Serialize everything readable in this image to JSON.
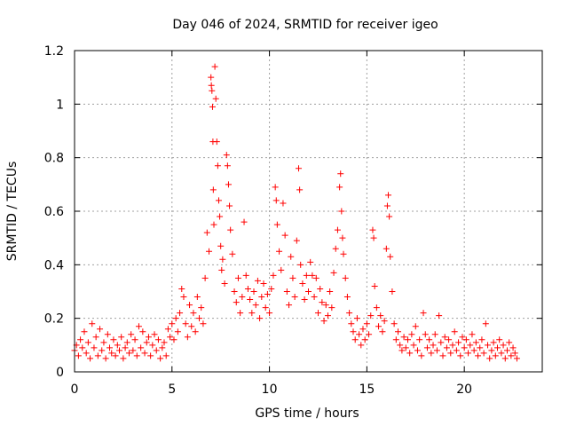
{
  "chart_data": {
    "type": "scatter",
    "title": "Day 046 of 2024, SRMTID for receiver igeo",
    "xlabel": "GPS time / hours",
    "ylabel": "SRMTID / TECUs",
    "xlim": [
      0,
      24
    ],
    "ylim": [
      0,
      1.2
    ],
    "x_ticks": [
      0,
      5,
      10,
      15,
      20
    ],
    "x_tick_labels": [
      "0",
      "5",
      "10",
      "15",
      "20"
    ],
    "y_ticks": [
      0,
      0.2,
      0.4,
      0.6,
      0.8,
      1.0,
      1.2
    ],
    "y_tick_labels": [
      "0",
      "0.2",
      "0.4",
      "0.6",
      "0.8",
      "1",
      "1.2"
    ],
    "grid": true,
    "marker": "plus",
    "marker_color": "#ff0000",
    "series": [
      {
        "name": "SRMTID",
        "points": [
          [
            0.0,
            0.08
          ],
          [
            0.1,
            0.1
          ],
          [
            0.2,
            0.06
          ],
          [
            0.3,
            0.12
          ],
          [
            0.4,
            0.09
          ],
          [
            0.5,
            0.15
          ],
          [
            0.6,
            0.07
          ],
          [
            0.7,
            0.11
          ],
          [
            0.8,
            0.05
          ],
          [
            0.9,
            0.18
          ],
          [
            1.0,
            0.09
          ],
          [
            1.1,
            0.13
          ],
          [
            1.2,
            0.06
          ],
          [
            1.3,
            0.16
          ],
          [
            1.4,
            0.08
          ],
          [
            1.5,
            0.11
          ],
          [
            1.6,
            0.05
          ],
          [
            1.7,
            0.14
          ],
          [
            1.8,
            0.09
          ],
          [
            1.9,
            0.07
          ],
          [
            2.0,
            0.12
          ],
          [
            2.1,
            0.06
          ],
          [
            2.2,
            0.1
          ],
          [
            2.3,
            0.08
          ],
          [
            2.4,
            0.13
          ],
          [
            2.5,
            0.05
          ],
          [
            2.6,
            0.09
          ],
          [
            2.7,
            0.11
          ],
          [
            2.8,
            0.07
          ],
          [
            2.9,
            0.14
          ],
          [
            3.0,
            0.08
          ],
          [
            3.1,
            0.12
          ],
          [
            3.2,
            0.06
          ],
          [
            3.3,
            0.17
          ],
          [
            3.4,
            0.09
          ],
          [
            3.5,
            0.15
          ],
          [
            3.6,
            0.07
          ],
          [
            3.7,
            0.11
          ],
          [
            3.8,
            0.13
          ],
          [
            3.9,
            0.06
          ],
          [
            4.0,
            0.1
          ],
          [
            4.1,
            0.14
          ],
          [
            4.2,
            0.08
          ],
          [
            4.3,
            0.12
          ],
          [
            4.4,
            0.05
          ],
          [
            4.5,
            0.09
          ],
          [
            4.6,
            0.11
          ],
          [
            4.7,
            0.06
          ],
          [
            4.8,
            0.16
          ],
          [
            4.9,
            0.13
          ],
          [
            5.0,
            0.18
          ],
          [
            5.1,
            0.12
          ],
          [
            5.2,
            0.2
          ],
          [
            5.3,
            0.15
          ],
          [
            5.4,
            0.22
          ],
          [
            5.5,
            0.31
          ],
          [
            5.6,
            0.28
          ],
          [
            5.7,
            0.18
          ],
          [
            5.8,
            0.13
          ],
          [
            5.9,
            0.25
          ],
          [
            6.0,
            0.17
          ],
          [
            6.1,
            0.22
          ],
          [
            6.2,
            0.15
          ],
          [
            6.3,
            0.28
          ],
          [
            6.4,
            0.2
          ],
          [
            6.5,
            0.24
          ],
          [
            6.6,
            0.18
          ],
          [
            6.7,
            0.35
          ],
          [
            6.8,
            0.52
          ],
          [
            6.9,
            0.45
          ],
          [
            7.0,
            1.1
          ],
          [
            7.02,
            1.07
          ],
          [
            7.05,
            1.05
          ],
          [
            7.08,
            0.99
          ],
          [
            7.1,
            0.86
          ],
          [
            7.12,
            0.68
          ],
          [
            7.15,
            0.55
          ],
          [
            7.2,
            1.14
          ],
          [
            7.25,
            1.02
          ],
          [
            7.3,
            0.86
          ],
          [
            7.35,
            0.77
          ],
          [
            7.4,
            0.64
          ],
          [
            7.45,
            0.58
          ],
          [
            7.5,
            0.47
          ],
          [
            7.55,
            0.38
          ],
          [
            7.6,
            0.42
          ],
          [
            7.7,
            0.33
          ],
          [
            7.8,
            0.81
          ],
          [
            7.85,
            0.77
          ],
          [
            7.9,
            0.7
          ],
          [
            7.95,
            0.62
          ],
          [
            8.0,
            0.53
          ],
          [
            8.1,
            0.44
          ],
          [
            8.2,
            0.3
          ],
          [
            8.3,
            0.26
          ],
          [
            8.4,
            0.35
          ],
          [
            8.5,
            0.22
          ],
          [
            8.6,
            0.28
          ],
          [
            8.7,
            0.56
          ],
          [
            8.8,
            0.36
          ],
          [
            8.9,
            0.31
          ],
          [
            9.0,
            0.27
          ],
          [
            9.1,
            0.22
          ],
          [
            9.2,
            0.3
          ],
          [
            9.3,
            0.25
          ],
          [
            9.4,
            0.34
          ],
          [
            9.5,
            0.2
          ],
          [
            9.6,
            0.28
          ],
          [
            9.7,
            0.33
          ],
          [
            9.8,
            0.24
          ],
          [
            9.9,
            0.29
          ],
          [
            10.0,
            0.22
          ],
          [
            10.1,
            0.31
          ],
          [
            10.2,
            0.36
          ],
          [
            10.3,
            0.69
          ],
          [
            10.35,
            0.64
          ],
          [
            10.4,
            0.55
          ],
          [
            10.5,
            0.45
          ],
          [
            10.6,
            0.38
          ],
          [
            10.7,
            0.63
          ],
          [
            10.8,
            0.51
          ],
          [
            10.9,
            0.3
          ],
          [
            11.0,
            0.25
          ],
          [
            11.1,
            0.43
          ],
          [
            11.2,
            0.35
          ],
          [
            11.3,
            0.28
          ],
          [
            11.4,
            0.49
          ],
          [
            11.5,
            0.76
          ],
          [
            11.55,
            0.68
          ],
          [
            11.6,
            0.4
          ],
          [
            11.7,
            0.33
          ],
          [
            11.8,
            0.27
          ],
          [
            11.9,
            0.36
          ],
          [
            12.0,
            0.3
          ],
          [
            12.1,
            0.41
          ],
          [
            12.2,
            0.36
          ],
          [
            12.3,
            0.28
          ],
          [
            12.4,
            0.35
          ],
          [
            12.5,
            0.22
          ],
          [
            12.6,
            0.31
          ],
          [
            12.7,
            0.26
          ],
          [
            12.8,
            0.19
          ],
          [
            12.9,
            0.25
          ],
          [
            13.0,
            0.21
          ],
          [
            13.1,
            0.3
          ],
          [
            13.2,
            0.24
          ],
          [
            13.3,
            0.37
          ],
          [
            13.4,
            0.46
          ],
          [
            13.5,
            0.53
          ],
          [
            13.6,
            0.69
          ],
          [
            13.65,
            0.74
          ],
          [
            13.7,
            0.6
          ],
          [
            13.75,
            0.5
          ],
          [
            13.8,
            0.44
          ],
          [
            13.9,
            0.35
          ],
          [
            14.0,
            0.28
          ],
          [
            14.1,
            0.22
          ],
          [
            14.2,
            0.18
          ],
          [
            14.3,
            0.15
          ],
          [
            14.4,
            0.12
          ],
          [
            14.5,
            0.2
          ],
          [
            14.6,
            0.14
          ],
          [
            14.7,
            0.1
          ],
          [
            14.8,
            0.16
          ],
          [
            14.9,
            0.12
          ],
          [
            15.0,
            0.18
          ],
          [
            15.1,
            0.14
          ],
          [
            15.2,
            0.21
          ],
          [
            15.3,
            0.53
          ],
          [
            15.35,
            0.5
          ],
          [
            15.4,
            0.32
          ],
          [
            15.5,
            0.24
          ],
          [
            15.6,
            0.17
          ],
          [
            15.7,
            0.21
          ],
          [
            15.8,
            0.15
          ],
          [
            15.9,
            0.19
          ],
          [
            16.0,
            0.46
          ],
          [
            16.05,
            0.62
          ],
          [
            16.1,
            0.66
          ],
          [
            16.15,
            0.58
          ],
          [
            16.2,
            0.43
          ],
          [
            16.3,
            0.3
          ],
          [
            16.4,
            0.18
          ],
          [
            16.5,
            0.12
          ],
          [
            16.6,
            0.15
          ],
          [
            16.7,
            0.1
          ],
          [
            16.8,
            0.08
          ],
          [
            16.9,
            0.13
          ],
          [
            17.0,
            0.09
          ],
          [
            17.1,
            0.12
          ],
          [
            17.2,
            0.07
          ],
          [
            17.3,
            0.14
          ],
          [
            17.4,
            0.1
          ],
          [
            17.5,
            0.17
          ],
          [
            17.6,
            0.08
          ],
          [
            17.7,
            0.12
          ],
          [
            17.8,
            0.06
          ],
          [
            17.9,
            0.22
          ],
          [
            18.0,
            0.14
          ],
          [
            18.1,
            0.09
          ],
          [
            18.2,
            0.12
          ],
          [
            18.3,
            0.07
          ],
          [
            18.4,
            0.1
          ],
          [
            18.5,
            0.14
          ],
          [
            18.6,
            0.08
          ],
          [
            18.7,
            0.21
          ],
          [
            18.8,
            0.11
          ],
          [
            18.9,
            0.06
          ],
          [
            19.0,
            0.13
          ],
          [
            19.1,
            0.09
          ],
          [
            19.2,
            0.12
          ],
          [
            19.3,
            0.07
          ],
          [
            19.4,
            0.1
          ],
          [
            19.5,
            0.15
          ],
          [
            19.6,
            0.08
          ],
          [
            19.7,
            0.11
          ],
          [
            19.8,
            0.06
          ],
          [
            19.9,
            0.13
          ],
          [
            20.0,
            0.09
          ],
          [
            20.1,
            0.12
          ],
          [
            20.2,
            0.07
          ],
          [
            20.3,
            0.1
          ],
          [
            20.4,
            0.14
          ],
          [
            20.5,
            0.08
          ],
          [
            20.6,
            0.11
          ],
          [
            20.7,
            0.06
          ],
          [
            20.8,
            0.09
          ],
          [
            20.9,
            0.12
          ],
          [
            21.0,
            0.07
          ],
          [
            21.1,
            0.18
          ],
          [
            21.2,
            0.1
          ],
          [
            21.3,
            0.05
          ],
          [
            21.4,
            0.08
          ],
          [
            21.5,
            0.11
          ],
          [
            21.6,
            0.06
          ],
          [
            21.7,
            0.09
          ],
          [
            21.8,
            0.12
          ],
          [
            21.9,
            0.07
          ],
          [
            22.0,
            0.1
          ],
          [
            22.1,
            0.05
          ],
          [
            22.2,
            0.08
          ],
          [
            22.3,
            0.11
          ],
          [
            22.4,
            0.06
          ],
          [
            22.5,
            0.09
          ],
          [
            22.6,
            0.07
          ],
          [
            22.7,
            0.05
          ]
        ]
      }
    ]
  }
}
